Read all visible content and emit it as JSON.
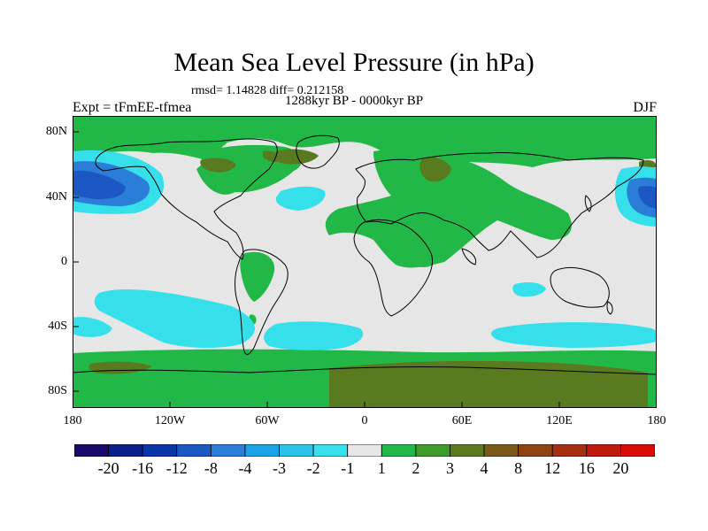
{
  "title": "Mean Sea Level Pressure (in hPa)",
  "stats": "rmsd= 1.14828 diff= 0.212158",
  "period": "1288kyr BP - 0000kyr BP",
  "experiment": "Expt = tFmEE-tfmea",
  "season": "DJF",
  "lat_labels": [
    "80N",
    "40N",
    "0",
    "40S",
    "80S"
  ],
  "lon_labels": [
    "180",
    "120W",
    "60W",
    "0",
    "60E",
    "120E",
    "180"
  ],
  "colorbar": {
    "colors": [
      "#1a0a6a",
      "#0a1e8c",
      "#0a35a8",
      "#1c58c4",
      "#2a7ed8",
      "#1aa2e6",
      "#2ac4ea",
      "#36e0ea",
      "#e6e6e6",
      "#22b848",
      "#3f9a2c",
      "#5a7a20",
      "#7a5a1a",
      "#904414",
      "#a82e12",
      "#c01a0e",
      "#dc0a08"
    ],
    "labels": [
      "-20",
      "-16",
      "-12",
      "-8",
      "-4",
      "-3",
      "-2",
      "-1",
      "1",
      "2",
      "3",
      "4",
      "8",
      "12",
      "16",
      "20"
    ]
  }
}
